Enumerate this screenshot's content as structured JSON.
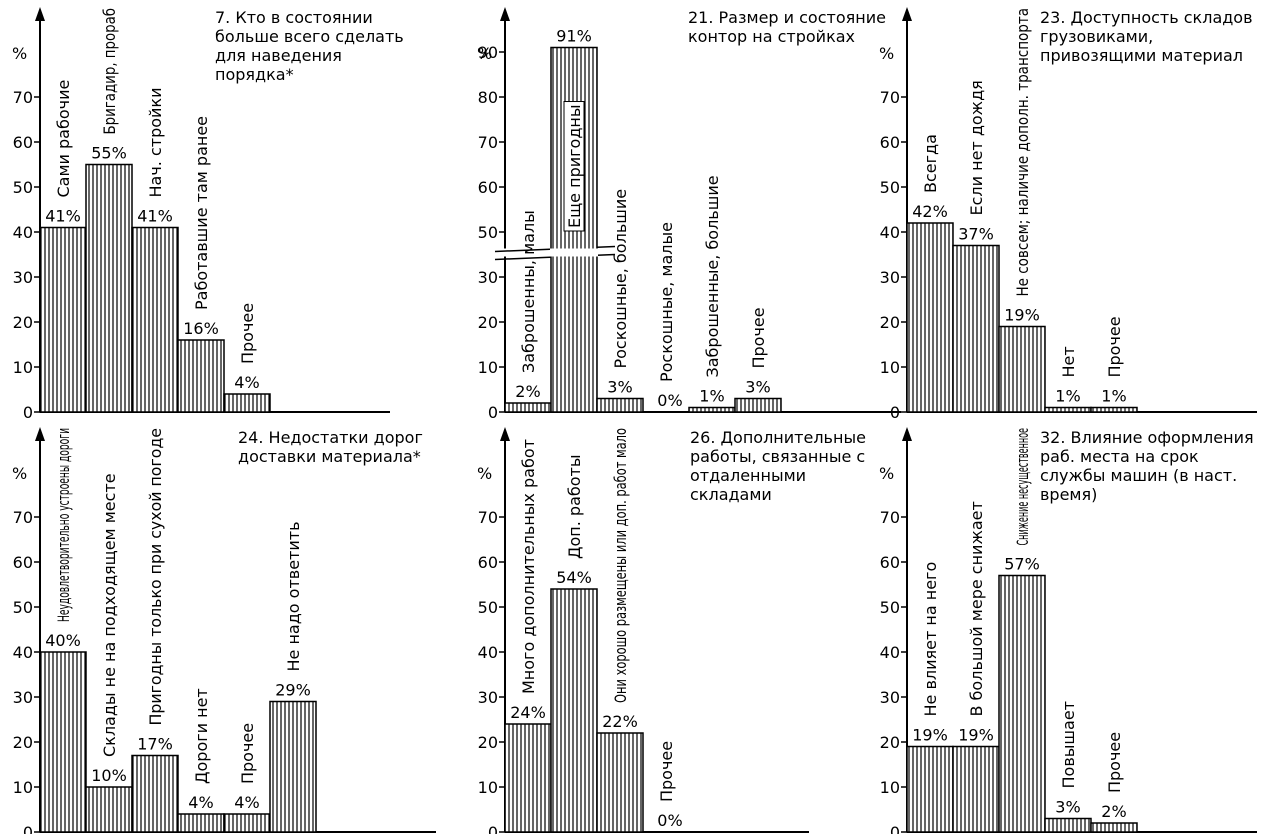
{
  "chart_data": [
    {
      "type": "bar",
      "title": "7. Кто в состоянии больше всего сделать для наведения порядка*",
      "y_label": "%",
      "categories": [
        "Сами рабочие",
        "Бригадир, прораб",
        "Нач. стройки",
        "Работавшие там ранее",
        "Прочее"
      ],
      "values": [
        41,
        55,
        41,
        16,
        4
      ],
      "value_labels": [
        "41%",
        "55%",
        "41%",
        "16%",
        "4%"
      ],
      "ylim": [
        0,
        90
      ],
      "yticks": [
        0,
        10,
        20,
        30,
        40,
        50,
        60,
        70
      ],
      "color": "#000000"
    },
    {
      "type": "bar",
      "title": "21. Размер и состояние контор на стройках",
      "y_label": "%",
      "categories": [
        "Заброшенны, малы",
        "Еще пригодны",
        "Роскошные, большие",
        "Роскошные, малые",
        "Заброшенные, большие",
        "Прочее"
      ],
      "values": [
        2,
        91,
        3,
        0,
        1,
        3
      ],
      "value_labels": [
        "2%",
        "91%",
        "3%",
        "0%",
        "1%",
        "3%"
      ],
      "ylim": [
        0,
        100
      ],
      "yticks": [
        0,
        10,
        20,
        30,
        50,
        60,
        70,
        80,
        90
      ],
      "axis_break": [
        35,
        45
      ],
      "color": "#000000"
    },
    {
      "type": "bar",
      "title": "23. Доступность складов грузовиками, привозящими материал",
      "y_label": "%",
      "categories": [
        "Всегда",
        "Если нет дождя",
        "Не совсем; наличие дополн. транспорта",
        "Нет",
        "Прочее"
      ],
      "values": [
        42,
        37,
        19,
        1,
        1
      ],
      "value_labels": [
        "42%",
        "37%",
        "19%",
        "1%",
        "1%"
      ],
      "ylim": [
        0,
        90
      ],
      "yticks": [
        0,
        10,
        20,
        30,
        40,
        50,
        60,
        70
      ],
      "color": "#000000"
    },
    {
      "type": "bar",
      "title": "24. Недостатки дорог доставки материала*",
      "y_label": "%",
      "categories": [
        "Неудовлетворительно устроены дороги",
        "Склады не на подходящем месте",
        "Пригодны только при сухой погоде",
        "Дороги нет",
        "Прочее",
        "Не надо ответить"
      ],
      "values": [
        40,
        10,
        17,
        4,
        4,
        29
      ],
      "value_labels": [
        "40%",
        "10%",
        "17%",
        "4%",
        "4%",
        "29%"
      ],
      "ylim": [
        0,
        90
      ],
      "yticks": [
        0,
        10,
        20,
        30,
        40,
        50,
        60,
        70
      ],
      "color": "#000000"
    },
    {
      "type": "bar",
      "title": "26. Дополнительные работы, связанные с отдаленными складами",
      "y_label": "%",
      "categories": [
        "Много дополнительных работ",
        "Доп. работы",
        "Они хорошо размещены или доп. работ мало",
        "Прочее"
      ],
      "values": [
        24,
        54,
        22,
        0
      ],
      "value_labels": [
        "24%",
        "54%",
        "22%",
        "0%"
      ],
      "ylim": [
        0,
        90
      ],
      "yticks": [
        0,
        10,
        20,
        30,
        40,
        50,
        60,
        70
      ],
      "color": "#000000"
    },
    {
      "type": "bar",
      "title": "32. Влияние оформления раб. места на срок службы машин (в наст. время)",
      "y_label": "%",
      "categories": [
        "Не влияет на него",
        "В большой мере снижает",
        "Снижение несущественное",
        "Повышает",
        "Прочее"
      ],
      "values": [
        19,
        19,
        57,
        3,
        2
      ],
      "value_labels": [
        "19%",
        "19%",
        "57%",
        "3%",
        "2%"
      ],
      "ylim": [
        0,
        90
      ],
      "yticks": [
        0,
        10,
        20,
        30,
        40,
        50,
        60,
        70
      ],
      "color": "#000000"
    }
  ]
}
